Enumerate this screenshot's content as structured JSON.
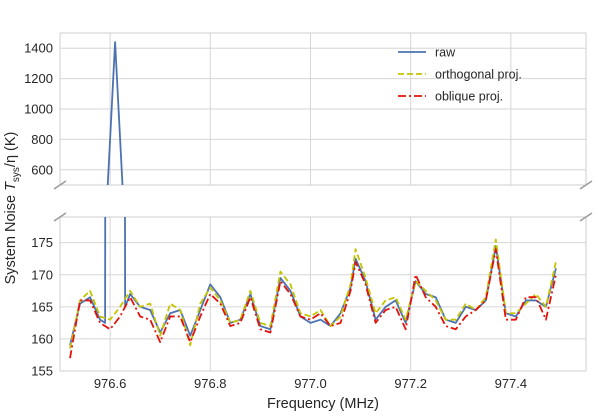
{
  "chart_data": {
    "type": "line",
    "xlabel": "Frequency (MHz)",
    "ylabel_prefix": "System Noise",
    "ylabel_var": "T",
    "ylabel_sub": "sys",
    "ylabel_suffix": "/η (K)",
    "xlim": [
      976.5,
      977.55
    ],
    "xticks": [
      976.6,
      976.8,
      977.0,
      977.2,
      977.4
    ],
    "xtick_labels": [
      "976.6",
      "976.8",
      "977.0",
      "977.2",
      "977.4"
    ],
    "broken_axis": true,
    "top_panel": {
      "ylim": [
        500,
        1500
      ],
      "yticks": [
        600,
        800,
        1000,
        1200,
        1400
      ],
      "ytick_labels": [
        "600",
        "800",
        "1000",
        "1200",
        "1400"
      ]
    },
    "bottom_panel": {
      "ylim": [
        155,
        179
      ],
      "yticks": [
        155,
        160,
        165,
        170,
        175
      ],
      "ytick_labels": [
        "155",
        "160",
        "165",
        "170",
        "175"
      ]
    },
    "grid": true,
    "legend_position": "top-right",
    "series": [
      {
        "name": "raw",
        "color": "#4c72b0",
        "style": "solid",
        "x": [
          976.52,
          976.54,
          976.56,
          976.58,
          976.59,
          976.61,
          976.63,
          976.64,
          976.66,
          976.68,
          976.7,
          976.72,
          976.74,
          976.76,
          976.78,
          976.8,
          976.82,
          976.84,
          976.86,
          976.88,
          976.9,
          976.92,
          976.94,
          976.96,
          976.98,
          977.0,
          977.02,
          977.04,
          977.06,
          977.08,
          977.09,
          977.11,
          977.13,
          977.15,
          977.17,
          977.19,
          977.21,
          977.23,
          977.25,
          977.27,
          977.29,
          977.31,
          977.33,
          977.35,
          977.37,
          977.39,
          977.41,
          977.43,
          977.45,
          977.47,
          977.49
        ],
        "y": [
          159,
          165.5,
          166.5,
          163,
          162.5,
          1440,
          165,
          167,
          165,
          164.5,
          161,
          164,
          164.5,
          160.5,
          164.5,
          168.5,
          166.5,
          162.5,
          163,
          167,
          162,
          161.5,
          169.5,
          167.5,
          163.5,
          162.5,
          163,
          162,
          164,
          168,
          172.5,
          169,
          163,
          165,
          166,
          162.5,
          169,
          167,
          166.5,
          163,
          162.5,
          165,
          164.5,
          166,
          174.5,
          164,
          163.5,
          166,
          166,
          165,
          171
        ]
      },
      {
        "name": "orthogonal proj.",
        "color": "#c4c400",
        "style": "dashed",
        "x": [
          976.52,
          976.54,
          976.56,
          976.58,
          976.6,
          976.62,
          976.64,
          976.66,
          976.68,
          976.7,
          976.72,
          976.74,
          976.76,
          976.78,
          976.8,
          976.82,
          976.84,
          976.86,
          976.88,
          976.9,
          976.92,
          976.94,
          976.96,
          976.98,
          977.0,
          977.02,
          977.04,
          977.06,
          977.08,
          977.09,
          977.11,
          977.13,
          977.15,
          977.17,
          977.19,
          977.21,
          977.23,
          977.25,
          977.27,
          977.29,
          977.31,
          977.33,
          977.35,
          977.37,
          977.39,
          977.41,
          977.43,
          977.45,
          977.47,
          977.49
        ],
        "y": [
          158.5,
          166,
          167.5,
          163.5,
          163,
          165,
          167.5,
          165,
          165.5,
          160.5,
          165.5,
          164.5,
          159,
          165.5,
          168,
          166,
          162.5,
          163,
          167.5,
          162.5,
          162,
          170.5,
          168.5,
          164,
          163.5,
          164.5,
          162,
          163.5,
          168.5,
          174,
          169.5,
          164,
          166,
          166.5,
          163,
          169,
          167.5,
          166,
          163,
          163,
          165.5,
          164.5,
          166.5,
          175.5,
          164,
          164,
          165.5,
          167,
          165,
          172
        ]
      },
      {
        "name": "oblique proj.",
        "color": "#e3120b",
        "style": "dashdot",
        "x": [
          976.52,
          976.54,
          976.56,
          976.58,
          976.6,
          976.62,
          976.64,
          976.66,
          976.68,
          976.7,
          976.72,
          976.74,
          976.76,
          976.78,
          976.8,
          976.82,
          976.84,
          976.86,
          976.88,
          976.9,
          976.92,
          976.94,
          976.96,
          976.98,
          977.0,
          977.02,
          977.04,
          977.06,
          977.08,
          977.09,
          977.11,
          977.13,
          977.15,
          977.17,
          977.19,
          977.21,
          977.23,
          977.25,
          977.27,
          977.29,
          977.31,
          977.33,
          977.35,
          977.37,
          977.39,
          977.41,
          977.43,
          977.45,
          977.47,
          977.49
        ],
        "y": [
          157,
          166,
          166,
          162.5,
          161.5,
          163.5,
          166.5,
          163.5,
          163,
          159.5,
          163.5,
          163.5,
          159.5,
          163.5,
          167,
          165.5,
          162,
          162.5,
          166.5,
          161.5,
          161,
          169,
          167,
          163.5,
          163,
          164,
          162,
          162.5,
          167.5,
          172,
          168.5,
          162.5,
          164.5,
          165,
          161.5,
          170,
          166.5,
          165,
          162,
          161.5,
          163.5,
          164.5,
          166,
          174,
          163,
          163,
          166.5,
          166.5,
          163,
          170
        ]
      }
    ]
  }
}
